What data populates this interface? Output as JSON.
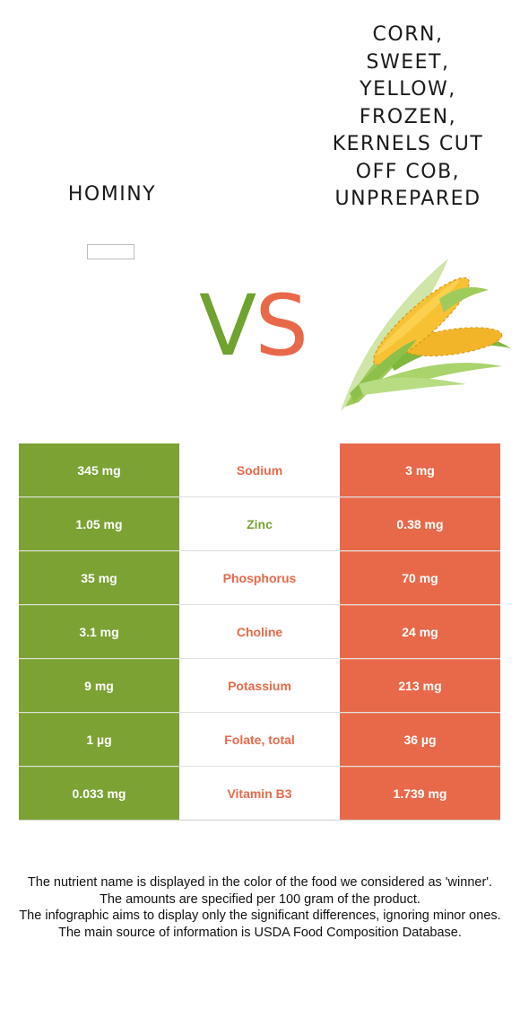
{
  "food1": {
    "name": "Hominy",
    "color": "#7ba233"
  },
  "food2": {
    "name": "Corn, sweet, yellow, frozen, kernels cut off cob, unprepared",
    "color": "#e8694a"
  },
  "vs": {
    "v": "V",
    "s": "S"
  },
  "rows": [
    {
      "left": "345 mg",
      "nutrient": "Sodium",
      "right": "3 mg",
      "winner": "food2"
    },
    {
      "left": "1.05 mg",
      "nutrient": "Zinc",
      "right": "0.38 mg",
      "winner": "food1"
    },
    {
      "left": "35 mg",
      "nutrient": "Phosphorus",
      "right": "70 mg",
      "winner": "food2"
    },
    {
      "left": "3.1 mg",
      "nutrient": "Choline",
      "right": "24 mg",
      "winner": "food2"
    },
    {
      "left": "9 mg",
      "nutrient": "Potassium",
      "right": "213 mg",
      "winner": "food2"
    },
    {
      "left": "1 µg",
      "nutrient": "Folate, total",
      "right": "36 µg",
      "winner": "food2"
    },
    {
      "left": "0.033 mg",
      "nutrient": "Vitamin B3",
      "right": "1.739 mg",
      "winner": "food2"
    }
  ],
  "footer": {
    "line1": "The nutrient name is displayed in the color of the food we considered as 'winner'.",
    "line2": "The amounts are specified per 100 gram of the product.",
    "line3": "The infographic aims to display only the significant differences, ignoring minor ones.",
    "line4": "The main source of information is USDA Food Composition Database."
  }
}
